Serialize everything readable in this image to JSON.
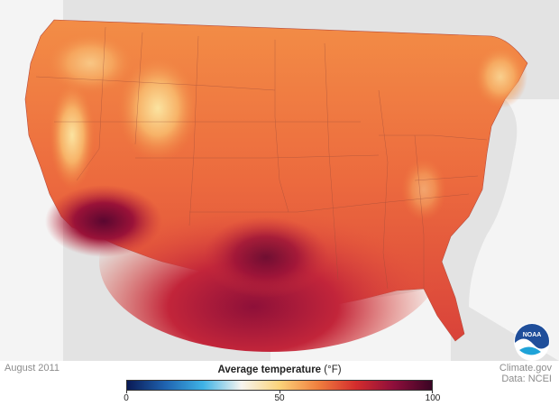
{
  "map": {
    "date": "August 2011",
    "legend": {
      "title": "Average temperature",
      "unit": "(°F)",
      "min_label": "0",
      "mid_label": "50",
      "max_label": "100",
      "colors": [
        "#0a1a55",
        "#1f63b0",
        "#3fb3e6",
        "#f7f5f0",
        "#fbd37a",
        "#f0803f",
        "#d42d2d",
        "#8e0e3b",
        "#3a0524"
      ]
    },
    "credit": {
      "source": "Climate.gov",
      "data": "Data: NCEI"
    },
    "logo": {
      "text": "NOAA",
      "icon": "noaa-logo-icon"
    },
    "colors": {
      "ocean": "#f4f4f4",
      "land_outside": "#e3e3e3",
      "state_border": "#9a4a3a"
    }
  }
}
